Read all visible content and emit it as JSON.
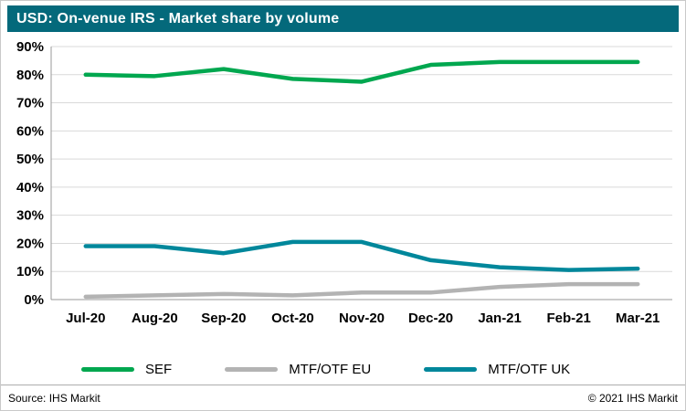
{
  "header": {
    "title": "USD: On-venue IRS - Market share by volume"
  },
  "colors": {
    "header_bg": "#04697B",
    "grid": "#D9D9D9",
    "axis": "#9A9A9A",
    "tick_text": "#000000"
  },
  "chart_data": {
    "type": "line",
    "title": "USD: On-venue IRS - Market share by volume",
    "categories": [
      "Jul-20",
      "Aug-20",
      "Sep-20",
      "Oct-20",
      "Nov-20",
      "Dec-20",
      "Jan-21",
      "Feb-21",
      "Mar-21"
    ],
    "series": [
      {
        "name": "SEF",
        "color": "#00A74F",
        "values": [
          80,
          79.5,
          82,
          78.5,
          77.5,
          83.5,
          84.5,
          84.5,
          84.5
        ]
      },
      {
        "name": "MTF/OTF EU",
        "color": "#B3B3B3",
        "values": [
          1,
          1.5,
          2,
          1.5,
          2.5,
          2.5,
          4.5,
          5.5,
          5.5
        ]
      },
      {
        "name": "MTF/OTF UK",
        "color": "#00879B",
        "values": [
          19,
          19,
          16.5,
          20.5,
          20.5,
          14,
          11.5,
          10.5,
          11
        ]
      }
    ],
    "xlabel": "",
    "ylabel": "",
    "ylim": [
      0,
      90
    ],
    "y_tick_step": 10,
    "y_ticks": [
      "0%",
      "10%",
      "20%",
      "30%",
      "40%",
      "50%",
      "60%",
      "70%",
      "80%",
      "90%"
    ],
    "grid": "horizontal",
    "legend_position": "bottom"
  },
  "footer": {
    "source": "Source: IHS Markit",
    "copyright": "© 2021 IHS Markit"
  }
}
